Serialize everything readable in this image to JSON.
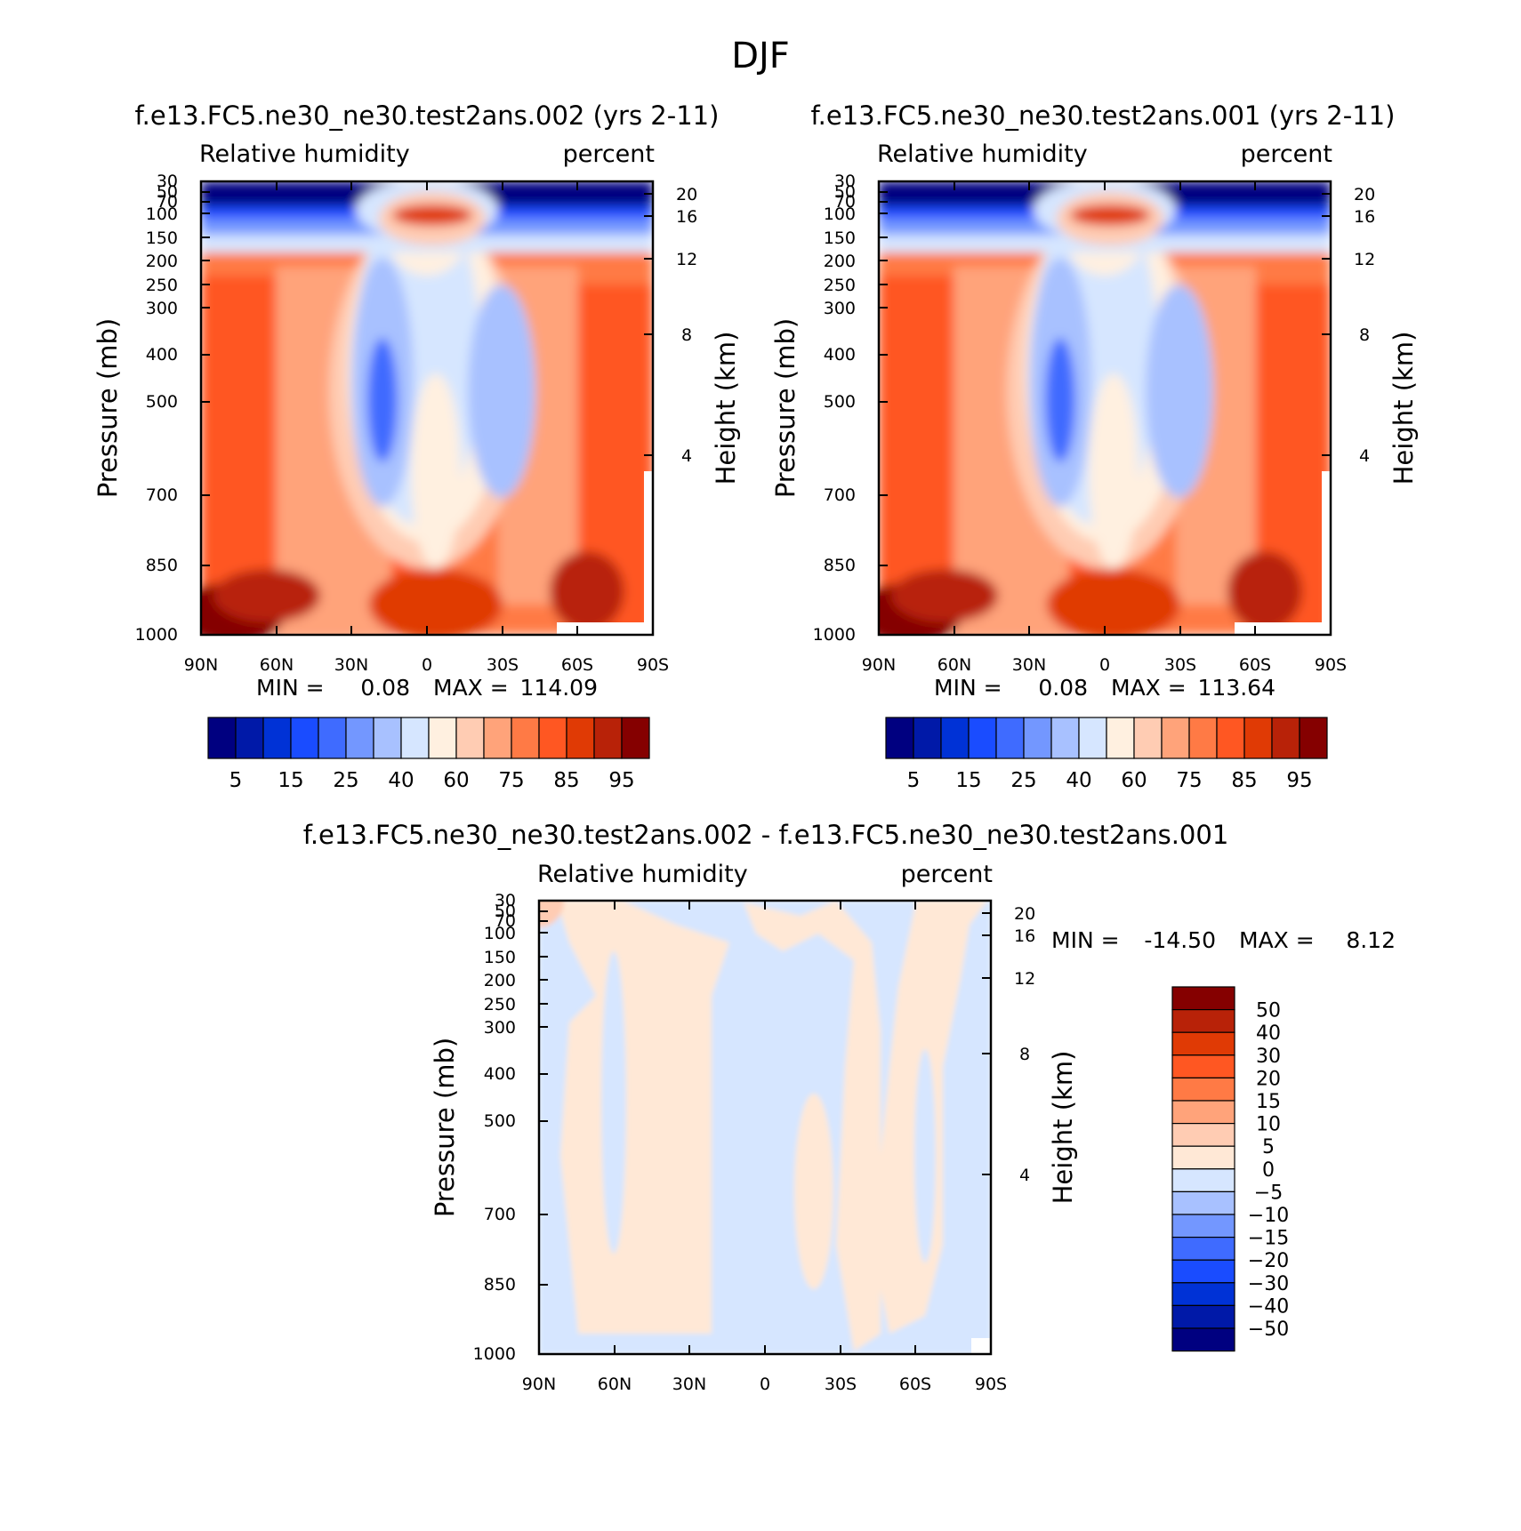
{
  "figure": {
    "title": "DJF"
  },
  "colors": {
    "rh_levels": [
      "#000080",
      "#0019a8",
      "#0032d6",
      "#1a4cff",
      "#3f6bff",
      "#7397ff",
      "#a8c1ff",
      "#d6e6ff",
      "#fff0e0",
      "#ffccb3",
      "#ffa37a",
      "#ff7a45",
      "#ff5722",
      "#e03a05",
      "#b82208",
      "#850000"
    ],
    "diff_levels": [
      "#000080",
      "#0019a8",
      "#0032d6",
      "#1a4cff",
      "#3f6bff",
      "#7397ff",
      "#a8c1ff",
      "#d6e6ff",
      "#ffe8d6",
      "#ffccb3",
      "#ffa37a",
      "#ff7a45",
      "#ff5722",
      "#e03a05",
      "#b82208",
      "#850000"
    ]
  },
  "chart_data": [
    {
      "type": "heatmap",
      "title": "f.e13.FC5.ne30_ne30.test2ans.002 (yrs 2-11)",
      "left_label": "Relative humidity",
      "right_label": "percent",
      "xlabel": "",
      "ylabel": "Pressure (mb)",
      "y2label": "Height (km)",
      "x_ticks": [
        "90N",
        "60N",
        "30N",
        "0",
        "30S",
        "60S",
        "90S"
      ],
      "y_ticks": [
        30,
        50,
        70,
        100,
        150,
        200,
        250,
        300,
        400,
        500,
        700,
        850,
        1000
      ],
      "y2_ticks": [
        20,
        16,
        12,
        8,
        4
      ],
      "ylim": [
        1000,
        30
      ],
      "yscale": "log",
      "stats": {
        "min_label": "MIN =",
        "min": "0.08",
        "max_label": "MAX =",
        "max": "114.09"
      },
      "colorbar_labels": [
        "5",
        "15",
        "25",
        "40",
        "60",
        "75",
        "85",
        "95"
      ],
      "colorbar_orientation": "horizontal"
    },
    {
      "type": "heatmap",
      "title": "f.e13.FC5.ne30_ne30.test2ans.001 (yrs 2-11)",
      "left_label": "Relative humidity",
      "right_label": "percent",
      "xlabel": "",
      "ylabel": "Pressure (mb)",
      "y2label": "Height (km)",
      "x_ticks": [
        "90N",
        "60N",
        "30N",
        "0",
        "30S",
        "60S",
        "90S"
      ],
      "y_ticks": [
        30,
        50,
        70,
        100,
        150,
        200,
        250,
        300,
        400,
        500,
        700,
        850,
        1000
      ],
      "y2_ticks": [
        20,
        16,
        12,
        8,
        4
      ],
      "ylim": [
        1000,
        30
      ],
      "yscale": "log",
      "stats": {
        "min_label": "MIN =",
        "min": "0.08",
        "max_label": "MAX =",
        "max": "113.64"
      },
      "colorbar_labels": [
        "5",
        "15",
        "25",
        "40",
        "60",
        "75",
        "85",
        "95"
      ],
      "colorbar_orientation": "horizontal"
    },
    {
      "type": "heatmap",
      "title": "f.e13.FC5.ne30_ne30.test2ans.002 - f.e13.FC5.ne30_ne30.test2ans.001",
      "left_label": "Relative humidity",
      "right_label": "percent",
      "xlabel": "",
      "ylabel": "Pressure (mb)",
      "y2label": "Height (km)",
      "x_ticks": [
        "90N",
        "60N",
        "30N",
        "0",
        "30S",
        "60S",
        "90S"
      ],
      "y_ticks": [
        30,
        50,
        70,
        100,
        150,
        200,
        250,
        300,
        400,
        500,
        700,
        850,
        1000
      ],
      "y2_ticks": [
        20,
        16,
        12,
        8,
        4
      ],
      "ylim": [
        1000,
        30
      ],
      "yscale": "log",
      "stats": {
        "min_label": "MIN =",
        "min": "-14.50",
        "max_label": "MAX =",
        "max": "8.12"
      },
      "colorbar_labels": [
        "50",
        "40",
        "30",
        "20",
        "15",
        "10",
        "5",
        "0",
        "-5",
        "-10",
        "-15",
        "-20",
        "-30",
        "-40",
        "-50"
      ],
      "colorbar_orientation": "vertical"
    }
  ]
}
